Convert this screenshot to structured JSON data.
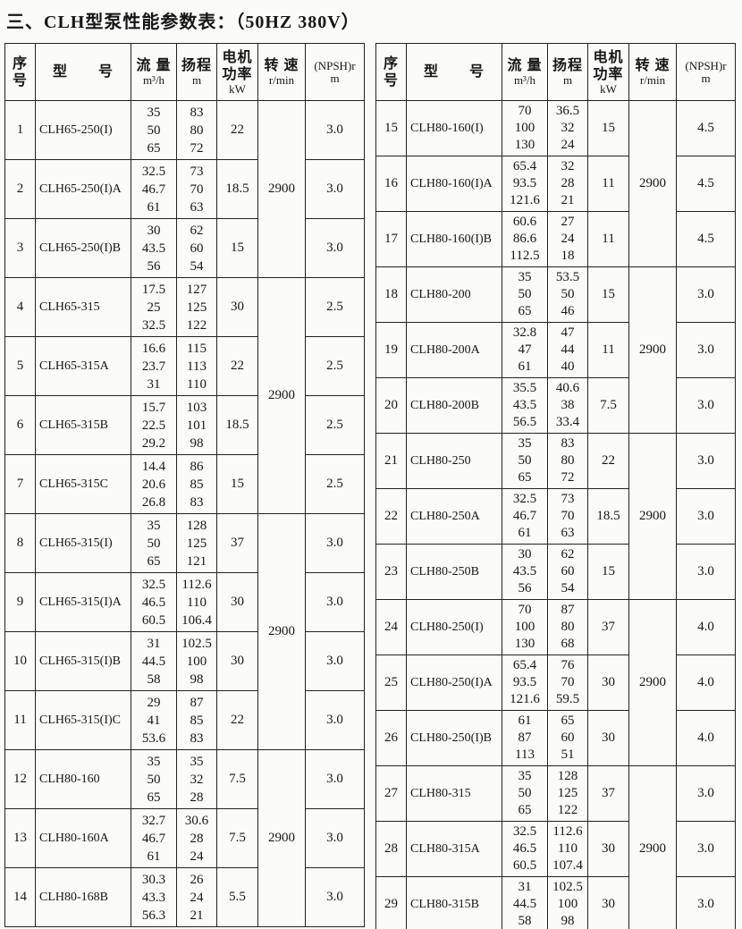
{
  "title": "三、CLH型泵性能参数表：（50HZ  380V）",
  "columns": [
    {
      "key": "no",
      "lines": [
        "序",
        "号"
      ]
    },
    {
      "key": "model",
      "lines": [
        "型　　号"
      ]
    },
    {
      "key": "flow",
      "lines": [
        "流 量",
        "m³/h"
      ]
    },
    {
      "key": "head",
      "lines": [
        "扬程",
        "m"
      ]
    },
    {
      "key": "power",
      "lines": [
        "电机",
        "功率",
        "kW"
      ]
    },
    {
      "key": "speed",
      "lines": [
        "转 速",
        "r/min"
      ]
    },
    {
      "key": "npsh",
      "lines": [
        "(NPSH)r",
        "m"
      ]
    }
  ],
  "tables": [
    {
      "name": "left",
      "rows": [
        {
          "no": "1",
          "model": "CLH65-250(I)",
          "flow": [
            "35",
            "50",
            "65"
          ],
          "head": [
            "83",
            "80",
            "72"
          ],
          "power": "22",
          "npsh": "3.0"
        },
        {
          "no": "2",
          "model": "CLH65-250(I)A",
          "flow": [
            "32.5",
            "46.7",
            "61"
          ],
          "head": [
            "73",
            "70",
            "63"
          ],
          "power": "18.5",
          "npsh": "3.0"
        },
        {
          "no": "3",
          "model": "CLH65-250(I)B",
          "flow": [
            "30",
            "43.5",
            "56"
          ],
          "head": [
            "62",
            "60",
            "54"
          ],
          "power": "15",
          "npsh": "3.0"
        },
        {
          "no": "4",
          "model": "CLH65-315",
          "flow": [
            "17.5",
            "25",
            "32.5"
          ],
          "head": [
            "127",
            "125",
            "122"
          ],
          "power": "30",
          "npsh": "2.5"
        },
        {
          "no": "5",
          "model": "CLH65-315A",
          "flow": [
            "16.6",
            "23.7",
            "31"
          ],
          "head": [
            "115",
            "113",
            "110"
          ],
          "power": "22",
          "npsh": "2.5"
        },
        {
          "no": "6",
          "model": "CLH65-315B",
          "flow": [
            "15.7",
            "22.5",
            "29.2"
          ],
          "head": [
            "103",
            "101",
            "98"
          ],
          "power": "18.5",
          "npsh": "2.5"
        },
        {
          "no": "7",
          "model": "CLH65-315C",
          "flow": [
            "14.4",
            "20.6",
            "26.8"
          ],
          "head": [
            "86",
            "85",
            "83"
          ],
          "power": "15",
          "npsh": "2.5"
        },
        {
          "no": "8",
          "model": "CLH65-315(I)",
          "flow": [
            "35",
            "50",
            "65"
          ],
          "head": [
            "128",
            "125",
            "121"
          ],
          "power": "37",
          "npsh": "3.0"
        },
        {
          "no": "9",
          "model": "CLH65-315(I)A",
          "flow": [
            "32.5",
            "46.5",
            "60.5"
          ],
          "head": [
            "112.6",
            "110",
            "106.4"
          ],
          "power": "30",
          "npsh": "3.0"
        },
        {
          "no": "10",
          "model": "CLH65-315(I)B",
          "flow": [
            "31",
            "44.5",
            "58"
          ],
          "head": [
            "102.5",
            "100",
            "98"
          ],
          "power": "30",
          "npsh": "3.0"
        },
        {
          "no": "11",
          "model": "CLH65-315(I)C",
          "flow": [
            "29",
            "41",
            "53.6"
          ],
          "head": [
            "87",
            "85",
            "83"
          ],
          "power": "22",
          "npsh": "3.0"
        },
        {
          "no": "12",
          "model": "CLH80-160",
          "flow": [
            "35",
            "50",
            "65"
          ],
          "head": [
            "35",
            "32",
            "28"
          ],
          "power": "7.5",
          "npsh": "3.0"
        },
        {
          "no": "13",
          "model": "CLH80-160A",
          "flow": [
            "32.7",
            "46.7",
            "61"
          ],
          "head": [
            "30.6",
            "28",
            "24"
          ],
          "power": "7.5",
          "npsh": "3.0"
        },
        {
          "no": "14",
          "model": "CLH80-168B",
          "flow": [
            "30.3",
            "43.3",
            "56.3"
          ],
          "head": [
            "26",
            "24",
            "21"
          ],
          "power": "5.5",
          "npsh": "3.0"
        }
      ],
      "speed_groups": [
        {
          "row": 0,
          "span": 3,
          "value": "2900"
        },
        {
          "row": 3,
          "span": 4,
          "value": "2900"
        },
        {
          "row": 7,
          "span": 4,
          "value": "2900"
        },
        {
          "row": 11,
          "span": 3,
          "value": "2900"
        }
      ]
    },
    {
      "name": "right",
      "rows": [
        {
          "no": "15",
          "model": "CLH80-160(I)",
          "flow": [
            "70",
            "100",
            "130"
          ],
          "head": [
            "36.5",
            "32",
            "24"
          ],
          "power": "15",
          "npsh": "4.5"
        },
        {
          "no": "16",
          "model": "CLH80-160(I)A",
          "flow": [
            "65.4",
            "93.5",
            "121.6"
          ],
          "head": [
            "32",
            "28",
            "21"
          ],
          "power": "11",
          "npsh": "4.5"
        },
        {
          "no": "17",
          "model": "CLH80-160(I)B",
          "flow": [
            "60.6",
            "86.6",
            "112.5"
          ],
          "head": [
            "27",
            "24",
            "18"
          ],
          "power": "11",
          "npsh": "4.5"
        },
        {
          "no": "18",
          "model": "CLH80-200",
          "flow": [
            "35",
            "50",
            "65"
          ],
          "head": [
            "53.5",
            "50",
            "46"
          ],
          "power": "15",
          "npsh": "3.0"
        },
        {
          "no": "19",
          "model": "CLH80-200A",
          "flow": [
            "32.8",
            "47",
            "61"
          ],
          "head": [
            "47",
            "44",
            "40"
          ],
          "power": "11",
          "npsh": "3.0"
        },
        {
          "no": "20",
          "model": "CLH80-200B",
          "flow": [
            "35.5",
            "43.5",
            "56.5"
          ],
          "head": [
            "40.6",
            "38",
            "33.4"
          ],
          "power": "7.5",
          "npsh": "3.0"
        },
        {
          "no": "21",
          "model": "CLH80-250",
          "flow": [
            "35",
            "50",
            "65"
          ],
          "head": [
            "83",
            "80",
            "72"
          ],
          "power": "22",
          "npsh": "3.0"
        },
        {
          "no": "22",
          "model": "CLH80-250A",
          "flow": [
            "32.5",
            "46.7",
            "61"
          ],
          "head": [
            "73",
            "70",
            "63"
          ],
          "power": "18.5",
          "npsh": "3.0"
        },
        {
          "no": "23",
          "model": "CLH80-250B",
          "flow": [
            "30",
            "43.5",
            "56"
          ],
          "head": [
            "62",
            "60",
            "54"
          ],
          "power": "15",
          "npsh": "3.0"
        },
        {
          "no": "24",
          "model": "CLH80-250(I)",
          "flow": [
            "70",
            "100",
            "130"
          ],
          "head": [
            "87",
            "80",
            "68"
          ],
          "power": "37",
          "npsh": "4.0"
        },
        {
          "no": "25",
          "model": "CLH80-250(I)A",
          "flow": [
            "65.4",
            "93.5",
            "121.6"
          ],
          "head": [
            "76",
            "70",
            "59.5"
          ],
          "power": "30",
          "npsh": "4.0"
        },
        {
          "no": "26",
          "model": "CLH80-250(I)B",
          "flow": [
            "61",
            "87",
            "113"
          ],
          "head": [
            "65",
            "60",
            "51"
          ],
          "power": "30",
          "npsh": "4.0"
        },
        {
          "no": "27",
          "model": "CLH80-315",
          "flow": [
            "35",
            "50",
            "65"
          ],
          "head": [
            "128",
            "125",
            "122"
          ],
          "power": "37",
          "npsh": "3.0"
        },
        {
          "no": "28",
          "model": "CLH80-315A",
          "flow": [
            "32.5",
            "46.5",
            "60.5"
          ],
          "head": [
            "112.6",
            "110",
            "107.4"
          ],
          "power": "30",
          "npsh": "3.0"
        },
        {
          "no": "29",
          "model": "CLH80-315B",
          "flow": [
            "31",
            "44.5",
            "58"
          ],
          "head": [
            "102.5",
            "100",
            "98"
          ],
          "power": "30",
          "npsh": "3.0"
        }
      ],
      "speed_groups": [
        {
          "row": 0,
          "span": 3,
          "value": "2900"
        },
        {
          "row": 3,
          "span": 3,
          "value": "2900"
        },
        {
          "row": 6,
          "span": 3,
          "value": "2900"
        },
        {
          "row": 9,
          "span": 3,
          "value": "2900"
        },
        {
          "row": 12,
          "span": 3,
          "value": "2900"
        }
      ]
    }
  ]
}
